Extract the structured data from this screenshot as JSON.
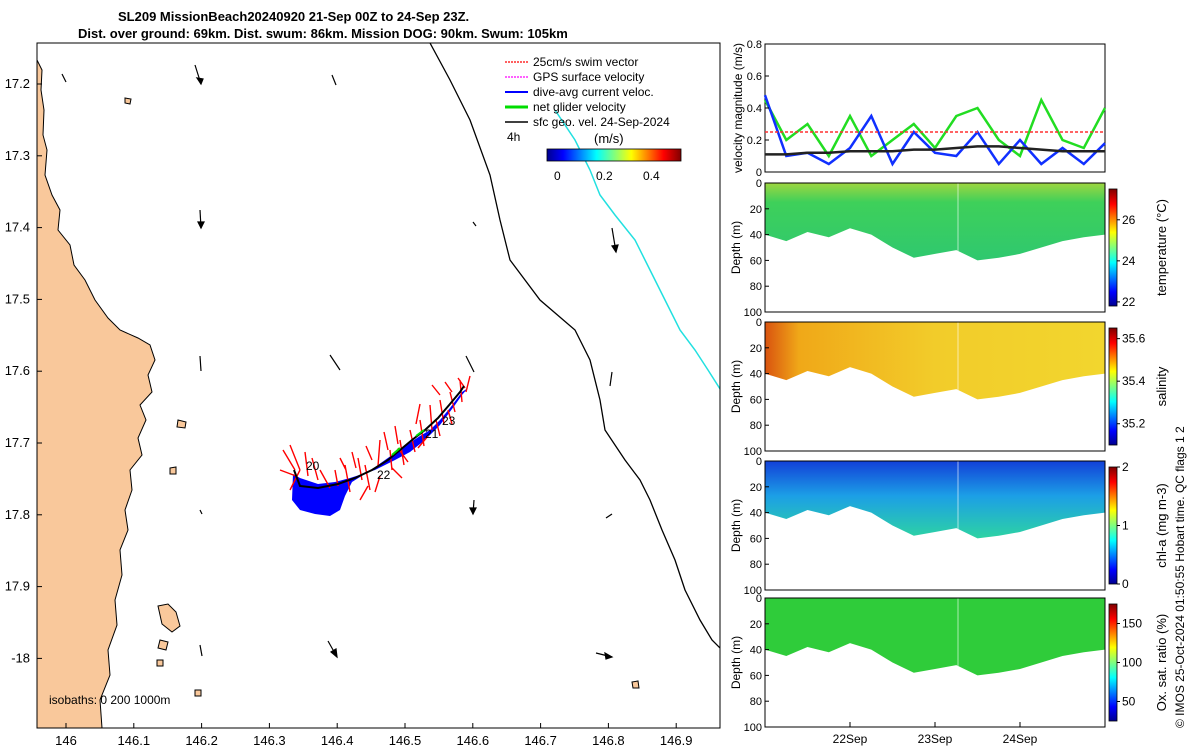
{
  "title": {
    "line1": "SL209 MissionBeach20240920 21-Sep 00Z to 24-Sep 23Z.",
    "line2": "Dist. over ground: 69km. Dist. swum: 86km. Mission DOG: 90km. Swum: 105km"
  },
  "map": {
    "x_ticks": [
      "146",
      "146.1",
      "146.2",
      "146.3",
      "146.4",
      "146.5",
      "146.6",
      "146.7",
      "146.8",
      "146.9"
    ],
    "y_ticks": [
      "17.2",
      "17.3",
      "17.4",
      "17.5",
      "17.6",
      "17.7",
      "17.8",
      "17.9",
      "-18"
    ],
    "legend": [
      {
        "label": "25cm/s swim vector",
        "color": "#ff0000"
      },
      {
        "label": "GPS surface velocity",
        "color": "#ff00ff"
      },
      {
        "label": "dive-avg current veloc.",
        "color": "#0000ff"
      },
      {
        "label": "net glider velocity",
        "color": "#00dd00"
      },
      {
        "label": "sfc geo. vel. 24-Sep-2024",
        "color": "#000000"
      }
    ],
    "time_label": "4h",
    "colorbar": {
      "title": "(m/s)",
      "ticks": [
        "0",
        "0.2",
        "0.4"
      ]
    },
    "isobath_text": "isobaths: 0   200  1000m",
    "track_labels": [
      "20",
      "22",
      "21",
      "23"
    ],
    "land_color": "#f9c89b"
  },
  "chart_data": [
    {
      "type": "line",
      "title": "",
      "xlabel": "",
      "ylabel": "velocity magnitude (m/s)",
      "ylim": [
        0,
        0.8
      ],
      "yticks": [
        "0",
        "0.2",
        "0.4",
        "0.6",
        "0.8"
      ],
      "x_days": [
        21,
        21.25,
        21.5,
        21.75,
        22,
        22.25,
        22.5,
        22.75,
        23,
        23.25,
        23.5,
        23.75,
        24,
        24.25,
        24.5,
        24.75,
        25
      ],
      "series": [
        {
          "name": "net glider velocity",
          "color": "#22dd22",
          "values": [
            0.45,
            0.2,
            0.3,
            0.1,
            0.35,
            0.1,
            0.2,
            0.3,
            0.15,
            0.35,
            0.4,
            0.2,
            0.1,
            0.45,
            0.2,
            0.15,
            0.4
          ]
        },
        {
          "name": "dive-avg current veloc.",
          "color": "#1030ff",
          "values": [
            0.48,
            0.1,
            0.12,
            0.05,
            0.15,
            0.35,
            0.05,
            0.25,
            0.12,
            0.1,
            0.25,
            0.05,
            0.2,
            0.05,
            0.15,
            0.05,
            0.18
          ]
        },
        {
          "name": "sfc geo. vel.",
          "color": "#222222",
          "values": [
            0.11,
            0.11,
            0.12,
            0.12,
            0.13,
            0.13,
            0.13,
            0.14,
            0.14,
            0.15,
            0.16,
            0.16,
            0.15,
            0.14,
            0.13,
            0.13,
            0.13
          ]
        },
        {
          "name": "25cm/s swim vector",
          "color": "#ff3030",
          "values": [
            0.25,
            0.25,
            0.25,
            0.25,
            0.25,
            0.25,
            0.25,
            0.25,
            0.25,
            0.25,
            0.25,
            0.25,
            0.25,
            0.25,
            0.25,
            0.25,
            0.25
          ]
        }
      ]
    },
    {
      "type": "heatmap",
      "ylabel": "Depth (m)",
      "colorbar_label": "temperature (°C)",
      "ylim": [
        100,
        0
      ],
      "yticks": [
        "0",
        "20",
        "40",
        "60",
        "80",
        "100"
      ],
      "cbar_ticks": [
        "22",
        "24",
        "26"
      ],
      "cbar_range": [
        21.8,
        27.5
      ],
      "depth_max_profile": [
        40,
        45,
        38,
        42,
        35,
        40,
        50,
        58,
        55,
        52,
        60,
        58,
        55,
        50,
        45,
        42,
        40
      ],
      "representative_value": 24.6
    },
    {
      "type": "heatmap",
      "ylabel": "Depth (m)",
      "colorbar_label": "salinity",
      "ylim": [
        100,
        0
      ],
      "yticks": [
        "0",
        "20",
        "40",
        "60",
        "80",
        "100"
      ],
      "cbar_ticks": [
        "35.2",
        "35.4",
        "35.6"
      ],
      "cbar_range": [
        35.1,
        35.65
      ],
      "depth_max_profile": [
        40,
        45,
        38,
        42,
        35,
        40,
        50,
        58,
        55,
        52,
        60,
        58,
        55,
        50,
        45,
        42,
        40
      ],
      "representative_value": 35.5
    },
    {
      "type": "heatmap",
      "ylabel": "Depth (m)",
      "colorbar_label": "chl-a (mg m-3)",
      "ylim": [
        100,
        0
      ],
      "yticks": [
        "0",
        "20",
        "40",
        "60",
        "80",
        "100"
      ],
      "cbar_ticks": [
        "0",
        "1",
        "2"
      ],
      "cbar_range": [
        0,
        2
      ],
      "depth_max_profile": [
        40,
        45,
        38,
        42,
        35,
        40,
        50,
        58,
        55,
        52,
        60,
        58,
        55,
        50,
        45,
        42,
        40
      ],
      "representative_value": 0.6
    },
    {
      "type": "heatmap",
      "ylabel": "Depth (m)",
      "colorbar_label": "Ox. sat. ratio (%)",
      "ylim": [
        100,
        0
      ],
      "yticks": [
        "0",
        "20",
        "40",
        "60",
        "80",
        "100"
      ],
      "cbar_ticks": [
        "50",
        "100",
        "150"
      ],
      "cbar_range": [
        25,
        175
      ],
      "depth_max_profile": [
        40,
        45,
        38,
        42,
        35,
        40,
        50,
        58,
        55,
        52,
        60,
        58,
        55,
        50,
        45,
        42,
        40
      ],
      "representative_value": 100,
      "xticks": [
        "22Sep",
        "23Sep",
        "24Sep"
      ]
    }
  ],
  "credit": "© IMOS 25-Oct-2024 01:50:55 Hobart time. QC flags 1  2"
}
